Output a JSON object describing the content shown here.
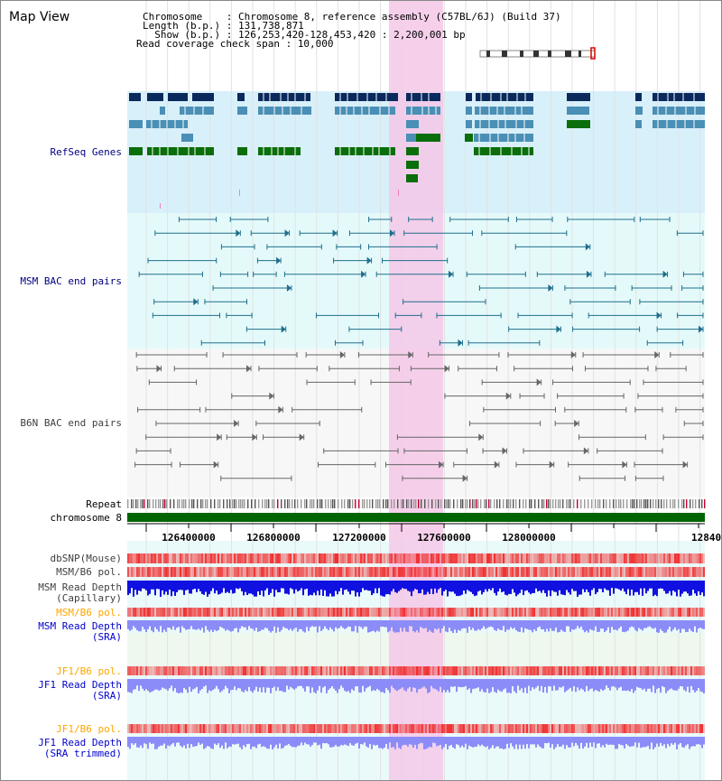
{
  "window": {
    "title": "Map View"
  },
  "header": {
    "chromosome": "Chromosome    : Chromosome 8, reference assembly (C57BL/6J) (Build 37)",
    "length": "Length (b.p.) : 131,738,871",
    "show": "  Show (b.p.) : 126,253,420-128,453,420 : 2,200,001 bp",
    "coverage": "Read coverage check span : 10,000"
  },
  "tracks": {
    "refseq": {
      "label": "RefSeq Genes",
      "color": "#000080"
    },
    "msm_bac": {
      "label": "MSM BAC end pairs",
      "color": "#000080"
    },
    "b6n_bac": {
      "label": "B6N BAC end pairs",
      "color": "#404040"
    },
    "repeat": {
      "label": "Repeat",
      "color": "#000000"
    },
    "chromosome": {
      "label": "chromosome 8",
      "color": "#000000"
    },
    "dbsnp": {
      "label": "dbSNP(Mouse)",
      "color": "#404040"
    },
    "msm_pol": {
      "label": "MSM/B6 pol.",
      "color": "#404040"
    },
    "msm_depth_cap": {
      "label1": "MSM Read Depth",
      "label2": "(Capillary)",
      "color": "#404040"
    },
    "msm_pol_2": {
      "label": "MSM/B6 pol.",
      "color": "#FFA500"
    },
    "msm_depth_sra": {
      "label1": "MSM Read Depth",
      "label2": "(SRA)",
      "color": "#0000CD"
    },
    "jf1_pol": {
      "label": "JF1/B6 pol.",
      "color": "#FFA500"
    },
    "jf1_depth_sra": {
      "label1": "JF1 Read Depth",
      "label2": "(SRA)",
      "color": "#0000CD"
    },
    "jf1_pol_2": {
      "label": "JF1/B6 pol.",
      "color": "#FFA500"
    },
    "jf1_depth_trim": {
      "label1": "JF1 Read Depth",
      "label2": "(SRA trimmed)",
      "color": "#0000CD"
    }
  },
  "axis": {
    "ticks": [
      "126400000",
      "126800000",
      "127200000",
      "127600000",
      "128000000",
      "12840"
    ]
  },
  "colors": {
    "highlight": "#F4C8E8",
    "refseq_bg": "#D8F0FA",
    "bac_bg": "#E4FAFA",
    "gene_dark": "#0A2A5E",
    "gene_mid": "#4A8FB5",
    "gene_green": "#0A6E0A",
    "msm_line": "#1F6E8C",
    "b6n_line": "#666666",
    "chrom_bar": "#006400",
    "snp_red": "#F03030",
    "depth_blue": "#1010E0",
    "depth_light": "#8C8CF8"
  }
}
